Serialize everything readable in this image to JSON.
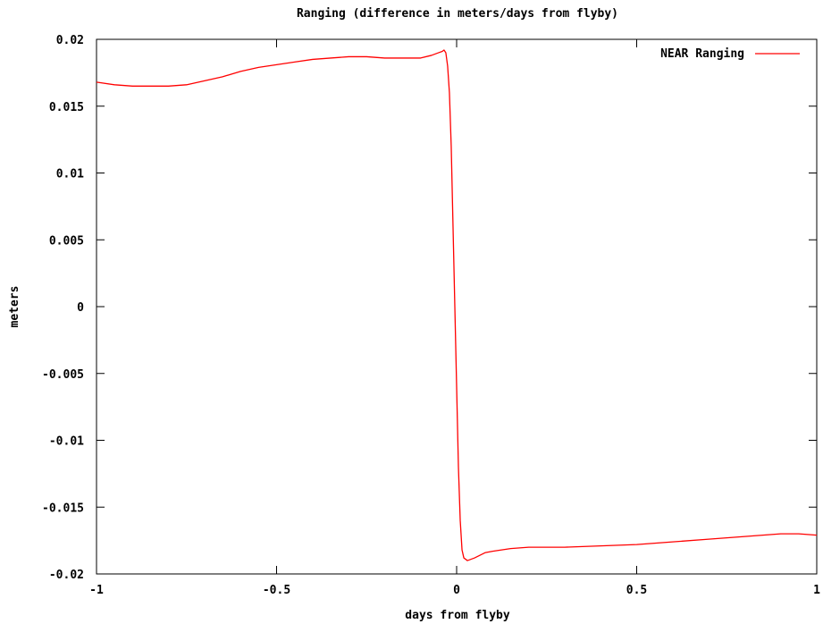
{
  "chart_data": {
    "type": "line",
    "title": "Ranging (difference in meters/days from flyby)",
    "xlabel": "days from flyby",
    "ylabel": "meters",
    "xlim": [
      -1,
      1
    ],
    "ylim": [
      -0.02,
      0.02
    ],
    "x_ticks": [
      "-1",
      "-0.5",
      "0",
      "0.5",
      "1"
    ],
    "x_tick_values": [
      -1,
      -0.5,
      0,
      0.5,
      1
    ],
    "y_ticks": [
      "0.02",
      "0.015",
      "0.01",
      "0.005",
      "0",
      "-0.005",
      "-0.01",
      "-0.015",
      "-0.02"
    ],
    "y_tick_values": [
      0.02,
      0.015,
      0.01,
      0.005,
      0,
      -0.005,
      -0.01,
      -0.015,
      -0.02
    ],
    "grid": false,
    "legend_position": "top-right",
    "series": [
      {
        "name": "NEAR Ranging",
        "color": "#ff0000",
        "x": [
          -1.0,
          -0.95,
          -0.9,
          -0.85,
          -0.8,
          -0.75,
          -0.7,
          -0.65,
          -0.6,
          -0.55,
          -0.5,
          -0.45,
          -0.4,
          -0.35,
          -0.3,
          -0.25,
          -0.2,
          -0.15,
          -0.1,
          -0.07,
          -0.05,
          -0.04,
          -0.035,
          -0.03,
          -0.025,
          -0.02,
          -0.015,
          -0.01,
          -0.005,
          0.0,
          0.005,
          0.01,
          0.015,
          0.02,
          0.03,
          0.05,
          0.08,
          0.1,
          0.15,
          0.2,
          0.3,
          0.4,
          0.5,
          0.6,
          0.7,
          0.8,
          0.9,
          0.95,
          1.0
        ],
        "y": [
          0.0168,
          0.0166,
          0.0165,
          0.0165,
          0.0165,
          0.0166,
          0.0169,
          0.0172,
          0.0176,
          0.0179,
          0.0181,
          0.0183,
          0.0185,
          0.0186,
          0.0187,
          0.0187,
          0.0186,
          0.0186,
          0.0186,
          0.0188,
          0.019,
          0.0191,
          0.0192,
          0.019,
          0.018,
          0.016,
          0.012,
          0.006,
          0.0,
          -0.006,
          -0.012,
          -0.016,
          -0.0182,
          -0.0188,
          -0.019,
          -0.0188,
          -0.0184,
          -0.0183,
          -0.0181,
          -0.018,
          -0.018,
          -0.0179,
          -0.0178,
          -0.0176,
          -0.0174,
          -0.0172,
          -0.017,
          -0.017,
          -0.0171
        ]
      }
    ]
  }
}
